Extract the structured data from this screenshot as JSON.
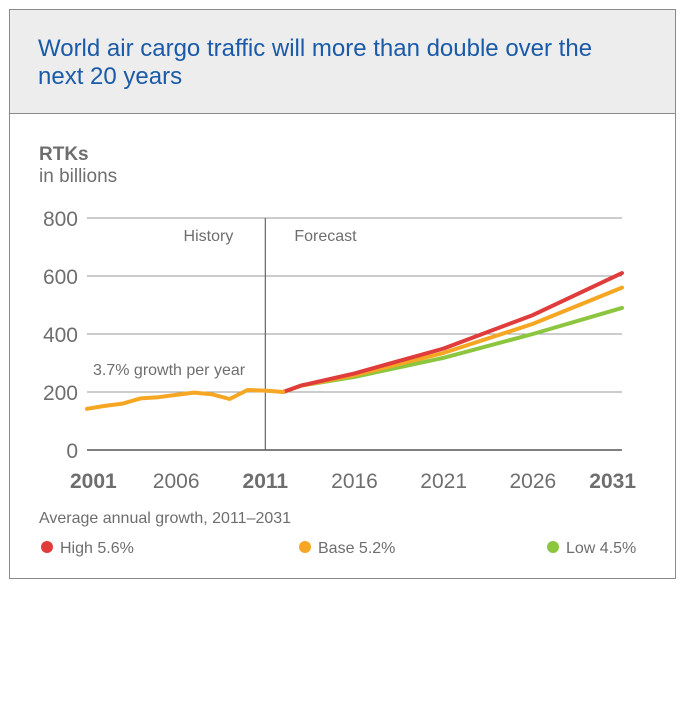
{
  "header": {
    "title": "World air cargo traffic will more than double over the next 20 years"
  },
  "chart_data": {
    "type": "line",
    "ylabel": "RTKs",
    "ylabel_unit": "in billions",
    "xlim": [
      2001,
      2031
    ],
    "ylim": [
      0,
      800
    ],
    "yticks": [
      0,
      200,
      400,
      600,
      800
    ],
    "xticks": [
      {
        "value": 2001,
        "label": "2001",
        "bold": true
      },
      {
        "value": 2006,
        "label": "2006",
        "bold": false
      },
      {
        "value": 2011,
        "label": "2011",
        "bold": true
      },
      {
        "value": 2016,
        "label": "2016",
        "bold": false
      },
      {
        "value": 2021,
        "label": "2021",
        "bold": false
      },
      {
        "value": 2026,
        "label": "2026",
        "bold": false
      },
      {
        "value": 2031,
        "label": "2031",
        "bold": true
      }
    ],
    "grid": true,
    "divider_year": 2011,
    "region_labels": {
      "history": "History",
      "forecast": "Forecast"
    },
    "annotation": "3.7% growth per year",
    "legend_title": "Average annual growth, 2011–2031",
    "series": [
      {
        "name": "History",
        "color": "#f5a623",
        "x": [
          2001,
          2002,
          2003,
          2004,
          2005,
          2006,
          2007,
          2008,
          2009,
          2010,
          2011,
          2012
        ],
        "y": [
          142,
          152,
          160,
          178,
          182,
          190,
          198,
          192,
          176,
          207,
          205,
          200
        ]
      },
      {
        "name": "High 5.6%",
        "color": "#e03c3c",
        "x": [
          2012,
          2013,
          2016,
          2021,
          2026,
          2031
        ],
        "y": [
          200,
          222,
          264,
          350,
          465,
          610
        ]
      },
      {
        "name": "Base 5.2%",
        "color": "#f5a623",
        "x": [
          2012,
          2013,
          2016,
          2021,
          2026,
          2031
        ],
        "y": [
          200,
          222,
          258,
          335,
          435,
          560
        ]
      },
      {
        "name": "Low 4.5%",
        "color": "#8cc63f",
        "x": [
          2012,
          2013,
          2016,
          2021,
          2026,
          2031
        ],
        "y": [
          200,
          222,
          252,
          318,
          400,
          490
        ]
      }
    ],
    "legend": [
      {
        "label": "High 5.6%",
        "color": "#e03c3c"
      },
      {
        "label": "Base 5.2%",
        "color": "#f5a623"
      },
      {
        "label": "Low 4.5%",
        "color": "#8cc63f"
      }
    ]
  }
}
